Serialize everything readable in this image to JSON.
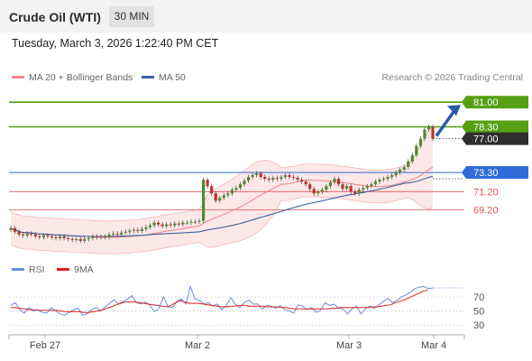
{
  "header": {
    "title": "Crude Oil (WTI)",
    "timeframe": "30 MIN",
    "timestamp": "Tuesday, March 3, 2026 1:22:40 PM CET"
  },
  "legend": {
    "ma20_label": "MA 20 + Bollinger Bands",
    "ma50_label": "MA 50",
    "copyright": "Research © 2026 Trading Central",
    "rsi_label": "RSI",
    "ma9_label": "9MA"
  },
  "colors": {
    "ma20": "#f08a8a",
    "ma50": "#3a5f9e",
    "bollinger_fill": "#fde4e4",
    "resistance": "#55a014",
    "support_blue": "#2f6bd8",
    "support_red": "#e05555",
    "arrow": "#2a5aa8",
    "bull": "#4e8a2e",
    "bear": "#c03030",
    "rsi": "#6b8fd8",
    "rsi_ma": "#e02020"
  },
  "chart_data": {
    "type": "candlestick",
    "x_labels": [
      "Feb 27",
      "Mar 2",
      "Mar 3",
      "Mar 4"
    ],
    "price_levels": [
      {
        "value": 81.0,
        "label": "81.00",
        "kind": "resistance"
      },
      {
        "value": 78.3,
        "label": "78.30",
        "kind": "resistance"
      },
      {
        "value": 77.0,
        "label": "77.00",
        "kind": "last"
      },
      {
        "value": 73.3,
        "label": "73.30",
        "kind": "pivot"
      },
      {
        "value": 71.2,
        "label": "71.20",
        "kind": "support"
      },
      {
        "value": 69.2,
        "label": "69.20",
        "kind": "support"
      }
    ],
    "price_ylim": [
      65.0,
      82.8
    ],
    "close": [
      67.2,
      66.8,
      66.5,
      66.4,
      66.6,
      66.5,
      66.3,
      66.2,
      66.4,
      66.3,
      66.2,
      66.1,
      66.3,
      66.1,
      66.0,
      65.9,
      66.0,
      65.8,
      66.0,
      66.1,
      66.3,
      66.2,
      66.3,
      66.2,
      66.5,
      66.6,
      66.5,
      66.7,
      66.8,
      66.9,
      67.0,
      66.9,
      67.1,
      67.3,
      67.5,
      67.8,
      67.6,
      67.4,
      67.6,
      67.5,
      67.7,
      67.6,
      67.8,
      67.8,
      67.9,
      67.9,
      68.0,
      72.5,
      71.8,
      71.0,
      70.2,
      70.5,
      70.8,
      71.0,
      71.4,
      71.6,
      72.0,
      72.4,
      72.8,
      73.0,
      73.2,
      72.8,
      72.6,
      72.5,
      72.7,
      72.6,
      72.8,
      73.0,
      72.8,
      72.7,
      72.5,
      72.3,
      72.0,
      71.5,
      71.0,
      71.2,
      71.4,
      71.8,
      72.2,
      72.6,
      72.0,
      71.5,
      71.8,
      71.2,
      71.0,
      71.4,
      71.6,
      71.8,
      72.0,
      72.3,
      72.5,
      72.6,
      72.8,
      73.0,
      73.3,
      73.6,
      73.9,
      74.5,
      75.2,
      76.2,
      77.0,
      78.0,
      78.3,
      77.0
    ],
    "rsi_ylim": [
      20,
      92
    ],
    "rsi_ticks": [
      70,
      50,
      30
    ],
    "rsi": [
      58,
      62,
      52,
      47,
      55,
      50,
      52,
      48,
      47,
      55,
      50,
      46,
      44,
      48,
      52,
      54,
      44,
      46,
      52,
      55,
      50,
      56,
      61,
      66,
      60,
      64,
      67,
      72,
      62,
      60,
      63,
      58,
      49,
      54,
      70,
      56,
      55,
      64,
      67,
      60,
      85,
      68,
      65,
      60,
      62,
      57,
      60,
      52,
      58,
      69,
      60,
      55,
      62,
      66,
      60,
      60,
      53,
      58,
      57,
      54,
      58,
      52,
      50,
      47,
      59,
      57,
      52,
      55,
      48,
      51,
      62,
      58,
      60,
      54,
      53,
      46,
      53,
      57,
      46,
      53,
      57,
      54,
      59,
      64,
      68,
      62,
      65,
      70,
      73,
      77,
      82,
      84,
      85,
      82,
      83
    ],
    "rsi_ma": [
      55,
      55,
      54,
      53,
      52,
      52,
      51,
      51,
      51,
      51,
      51,
      50,
      49,
      49,
      49,
      49,
      48,
      48,
      49,
      50,
      52,
      54,
      56,
      59,
      61,
      63,
      63,
      63,
      62,
      61,
      60,
      59,
      58,
      57,
      56,
      58,
      62,
      65,
      63,
      61,
      61,
      61,
      60,
      59,
      58,
      57,
      56,
      56,
      57,
      57,
      58,
      58,
      57,
      57,
      57,
      57,
      56,
      56,
      56,
      55,
      55,
      54,
      53,
      53,
      53,
      53,
      53,
      53,
      53,
      53,
      54,
      54,
      55,
      55,
      55,
      55,
      55,
      55,
      55,
      56,
      56,
      57,
      58,
      59,
      62,
      64,
      66,
      69,
      72,
      75,
      78,
      80
    ]
  }
}
